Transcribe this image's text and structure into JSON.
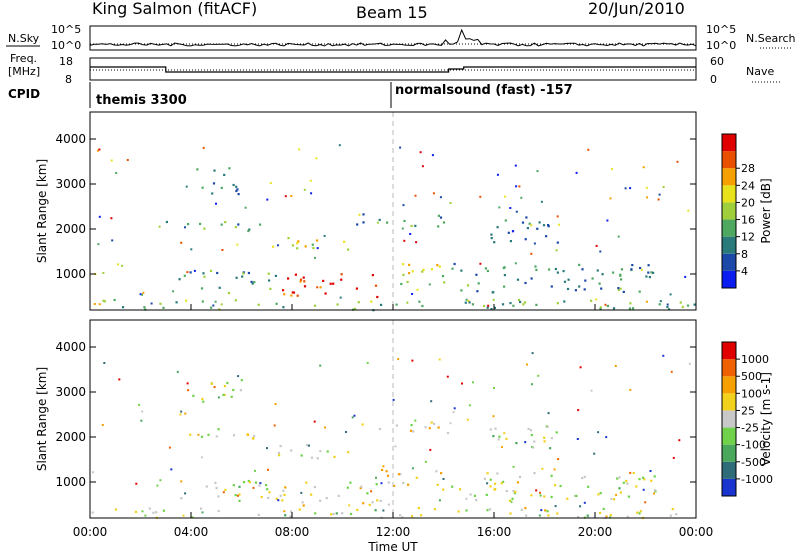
{
  "header": {
    "site": "King Salmon (fitACF)",
    "beam": "Beam 15",
    "date": "20/Jun/2010"
  },
  "top_panels": {
    "nsky_label": "N.Sky",
    "nsky_ticks": [
      "10^5",
      "10^0"
    ],
    "nsearch_label": "N.Search",
    "nsearch_ticks": [
      "10^5",
      "10^0"
    ],
    "freq_label_1": "Freq.",
    "freq_label_2": "[MHz]",
    "freq_ticks": [
      "18",
      "8"
    ],
    "nave_label": "Nave",
    "nave_ticks": [
      "60",
      "0"
    ],
    "cpid_label": "CPID",
    "cpid_segments": [
      {
        "label": "themis 3300",
        "start_hour": 0.0
      },
      {
        "label": "normalsound (fast) -157",
        "start_hour": 12.0
      }
    ]
  },
  "chart_data": [
    {
      "type": "heatmap",
      "panel": "power",
      "ylabel": "Slant Range [km]",
      "yticks": [
        1000,
        2000,
        3000,
        4000
      ],
      "ylim": [
        200,
        4600
      ],
      "xlim": [
        0,
        24
      ],
      "colorbar_label": "Power [dB]",
      "colorbar_ticks": [
        "4",
        "8",
        "12",
        "16",
        "20",
        "24",
        "28"
      ],
      "colorbar_colors": [
        "#0a1cf0",
        "#1c49a8",
        "#2a7a7c",
        "#4ea860",
        "#9fcf3a",
        "#e8e21c",
        "#f5a000",
        "#e85000",
        "#e00000"
      ],
      "echo_regions": [
        {
          "t0": 3.0,
          "t1": 7.0,
          "r0": 1950,
          "r1": 2200,
          "level": 0.35
        },
        {
          "t0": 7.0,
          "t1": 10.5,
          "r0": 1550,
          "r1": 1850,
          "level": 0.55
        },
        {
          "t0": 10.5,
          "t1": 14.2,
          "r0": 2050,
          "r1": 2350,
          "level": 0.3
        },
        {
          "t0": 3.5,
          "t1": 7.5,
          "r0": 600,
          "r1": 1100,
          "level": 0.35
        },
        {
          "t0": 7.5,
          "t1": 11.5,
          "r0": 500,
          "r1": 1050,
          "level": 0.9
        },
        {
          "t0": 11.5,
          "t1": 14.0,
          "r0": 800,
          "r1": 1300,
          "level": 0.55
        },
        {
          "t0": 4.0,
          "t1": 6.0,
          "r0": 2800,
          "r1": 3400,
          "level": 0.25
        },
        {
          "t0": 14.3,
          "t1": 22.5,
          "r0": 600,
          "r1": 1250,
          "level": 0.3
        },
        {
          "t0": 15.5,
          "t1": 18.5,
          "r0": 1700,
          "r1": 2300,
          "level": 0.25
        },
        {
          "t0": 0.0,
          "t1": 24.0,
          "r0": 220,
          "r1": 450,
          "level": 0.4
        }
      ]
    },
    {
      "type": "heatmap",
      "panel": "velocity",
      "ylabel": "Slant Range [km]",
      "yticks": [
        1000,
        2000,
        3000,
        4000
      ],
      "ylim": [
        200,
        4600
      ],
      "xlim": [
        0,
        24
      ],
      "xticks": [
        "00:00",
        "04:00",
        "08:00",
        "12:00",
        "16:00",
        "20:00",
        "00:00"
      ],
      "xlabel": "Time UT",
      "colorbar_label": "Velocity [m s-1]",
      "colorbar_ticks": [
        "1000",
        "500",
        "100",
        "25",
        "-25",
        "-100",
        "-500",
        "-1000"
      ],
      "colorbar_colors": [
        "#1a34d0",
        "#2f6c7a",
        "#49a85c",
        "#6fd24a",
        "#c8c8c8",
        "#f2d11c",
        "#f5a000",
        "#ee6000",
        "#e00000"
      ],
      "echo_regions": [
        {
          "t0": 3.0,
          "t1": 7.0,
          "r0": 1950,
          "r1": 2200,
          "level": 0.5
        },
        {
          "t0": 7.0,
          "t1": 10.5,
          "r0": 1550,
          "r1": 1850,
          "level": 0.5
        },
        {
          "t0": 10.5,
          "t1": 14.2,
          "r0": 2050,
          "r1": 2350,
          "level": 0.55
        },
        {
          "t0": 3.5,
          "t1": 7.5,
          "r0": 600,
          "r1": 1100,
          "level": 0.5
        },
        {
          "t0": 7.5,
          "t1": 11.5,
          "r0": 500,
          "r1": 1050,
          "level": 0.55
        },
        {
          "t0": 11.5,
          "t1": 14.0,
          "r0": 800,
          "r1": 1300,
          "level": 0.6
        },
        {
          "t0": 4.0,
          "t1": 6.0,
          "r0": 2800,
          "r1": 3400,
          "level": 0.5
        },
        {
          "t0": 14.3,
          "t1": 22.5,
          "r0": 600,
          "r1": 1250,
          "level": 0.5
        },
        {
          "t0": 15.5,
          "t1": 18.5,
          "r0": 1700,
          "r1": 2300,
          "level": 0.45
        },
        {
          "t0": 0.0,
          "t1": 24.0,
          "r0": 220,
          "r1": 450,
          "level": 0.5
        }
      ]
    }
  ]
}
